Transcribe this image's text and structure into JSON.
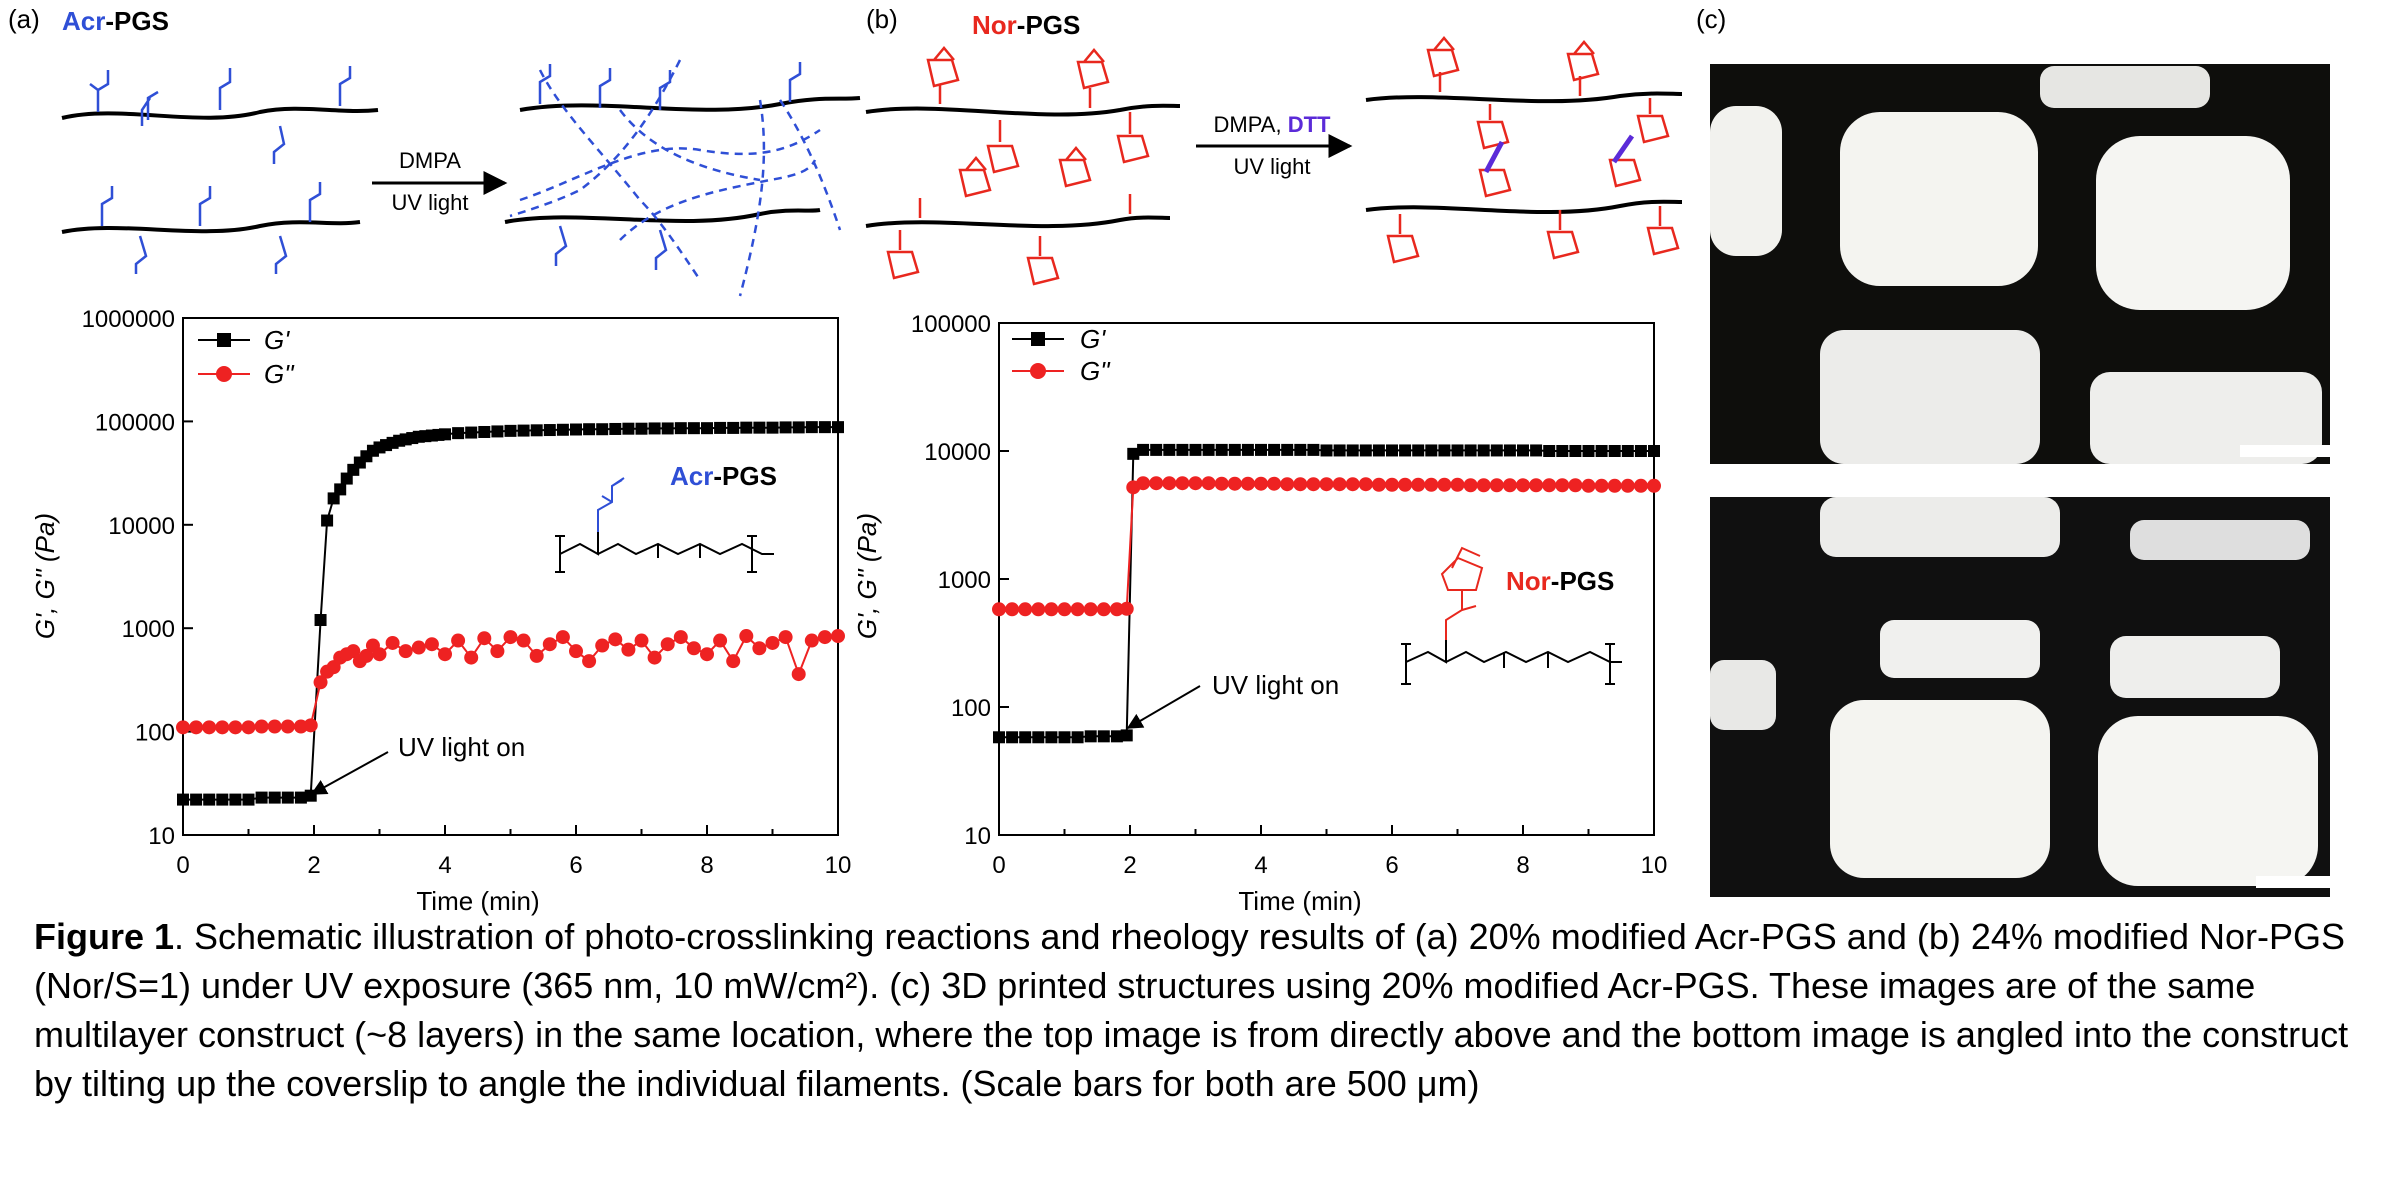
{
  "colors": {
    "acr_blue": "#2f4fd6",
    "nor_red": "#e8281e",
    "dtt_purple": "#5b2bd8",
    "black": "#000000",
    "red_series": "#ee2222"
  },
  "panel_a": {
    "label": "(a)",
    "title_colored": "Acr",
    "title_rest": "-PGS",
    "arrow_top": "DMPA",
    "arrow_bottom": "UV light"
  },
  "panel_b": {
    "label": "(b)",
    "title_colored": "Nor",
    "title_rest": "-PGS",
    "arrow_top_a": "DMPA, ",
    "arrow_top_b": "DTT",
    "arrow_bottom": "UV light"
  },
  "panel_c": {
    "label": "(c)",
    "icon": "microscopy-image"
  },
  "chart_data": [
    {
      "type": "line",
      "xlabel": "Time (min)",
      "ylabel": "G', G'' (Pa)",
      "yscale": "log",
      "xlim": [
        0,
        10
      ],
      "ylim": [
        10,
        1000000
      ],
      "x_ticks": [
        "0",
        "2",
        "4",
        "6",
        "8",
        "10"
      ],
      "y_ticks": [
        "10",
        "100",
        "1000",
        "10000",
        "100000",
        "1000000"
      ],
      "legend": [
        "G'",
        "G\""
      ],
      "legend_position": "top-left",
      "annotation": "UV light on",
      "inset_label_colored": "Acr",
      "inset_label_rest": "-PGS",
      "series": [
        {
          "name": "G'",
          "color": "#000000",
          "marker": "square",
          "x": [
            0,
            0.2,
            0.4,
            0.6,
            0.8,
            1.0,
            1.2,
            1.4,
            1.6,
            1.8,
            1.95,
            2.1,
            2.2,
            2.3,
            2.4,
            2.5,
            2.6,
            2.7,
            2.8,
            2.9,
            3.0,
            3.1,
            3.2,
            3.3,
            3.4,
            3.5,
            3.6,
            3.7,
            3.8,
            3.9,
            4.0,
            4.2,
            4.4,
            4.6,
            4.8,
            5.0,
            5.2,
            5.4,
            5.6,
            5.8,
            6.0,
            6.2,
            6.4,
            6.6,
            6.8,
            7.0,
            7.2,
            7.4,
            7.6,
            7.8,
            8.0,
            8.2,
            8.4,
            8.6,
            8.8,
            9.0,
            9.2,
            9.4,
            9.6,
            9.8,
            10.0
          ],
          "y": [
            22,
            22,
            22,
            22,
            22,
            22,
            23,
            23,
            23,
            23,
            24,
            1200,
            11000,
            18000,
            22000,
            28000,
            34000,
            40000,
            46000,
            52000,
            56000,
            59000,
            62000,
            65000,
            67000,
            69000,
            71000,
            72000,
            73000,
            74000,
            75000,
            77000,
            78000,
            79000,
            80000,
            81000,
            81500,
            82000,
            82500,
            83000,
            83500,
            84000,
            84000,
            84500,
            85000,
            85000,
            85500,
            85500,
            86000,
            86000,
            86000,
            86500,
            86500,
            87000,
            87000,
            87000,
            87500,
            87500,
            88000,
            88000,
            88000
          ]
        },
        {
          "name": "G\"",
          "color": "#ee2222",
          "marker": "circle",
          "x": [
            0,
            0.2,
            0.4,
            0.6,
            0.8,
            1.0,
            1.2,
            1.4,
            1.6,
            1.8,
            1.95,
            2.1,
            2.2,
            2.3,
            2.4,
            2.5,
            2.6,
            2.7,
            2.8,
            2.9,
            3.0,
            3.2,
            3.4,
            3.6,
            3.8,
            4.0,
            4.2,
            4.4,
            4.6,
            4.8,
            5.0,
            5.2,
            5.4,
            5.6,
            5.8,
            6.0,
            6.2,
            6.4,
            6.6,
            6.8,
            7.0,
            7.2,
            7.4,
            7.6,
            7.8,
            8.0,
            8.2,
            8.4,
            8.6,
            8.8,
            9.0,
            9.2,
            9.4,
            9.6,
            9.8,
            10.0
          ],
          "y": [
            110,
            110,
            110,
            110,
            110,
            110,
            112,
            112,
            112,
            112,
            115,
            300,
            380,
            420,
            520,
            560,
            600,
            480,
            540,
            680,
            560,
            720,
            600,
            650,
            700,
            560,
            760,
            520,
            800,
            600,
            820,
            760,
            540,
            700,
            820,
            600,
            480,
            680,
            780,
            620,
            760,
            520,
            700,
            820,
            640,
            560,
            760,
            480,
            840,
            640,
            720,
            820,
            360,
            760,
            820,
            840
          ]
        }
      ]
    },
    {
      "type": "line",
      "xlabel": "Time (min)",
      "ylabel": "G', G'' (Pa)",
      "yscale": "log",
      "xlim": [
        0,
        10
      ],
      "ylim": [
        10,
        100000
      ],
      "x_ticks": [
        "0",
        "2",
        "4",
        "6",
        "8",
        "10"
      ],
      "y_ticks": [
        "10",
        "100",
        "1000",
        "10000",
        "100000"
      ],
      "legend": [
        "G'",
        "G\""
      ],
      "legend_position": "top-left",
      "annotation": "UV light on",
      "inset_label_colored": "Nor",
      "inset_label_rest": "-PGS",
      "series": [
        {
          "name": "G'",
          "color": "#000000",
          "marker": "square",
          "x": [
            0,
            0.2,
            0.4,
            0.6,
            0.8,
            1.0,
            1.2,
            1.4,
            1.6,
            1.8,
            1.95,
            2.05,
            2.2,
            2.4,
            2.6,
            2.8,
            3.0,
            3.2,
            3.4,
            3.6,
            3.8,
            4.0,
            4.2,
            4.4,
            4.6,
            4.8,
            5.0,
            5.2,
            5.4,
            5.6,
            5.8,
            6.0,
            6.2,
            6.4,
            6.6,
            6.8,
            7.0,
            7.2,
            7.4,
            7.6,
            7.8,
            8.0,
            8.2,
            8.4,
            8.6,
            8.8,
            9.0,
            9.2,
            9.4,
            9.6,
            9.8,
            10.0
          ],
          "y": [
            58,
            58,
            58,
            58,
            58,
            58,
            58,
            59,
            59,
            59,
            60,
            9500,
            10200,
            10200,
            10200,
            10200,
            10200,
            10200,
            10200,
            10200,
            10200,
            10200,
            10200,
            10200,
            10200,
            10200,
            10100,
            10100,
            10100,
            10100,
            10100,
            10100,
            10100,
            10100,
            10100,
            10100,
            10100,
            10100,
            10100,
            10100,
            10100,
            10100,
            10100,
            10000,
            10000,
            10000,
            10000,
            10000,
            10000,
            10000,
            10000,
            10000
          ]
        },
        {
          "name": "G\"",
          "color": "#ee2222",
          "marker": "circle",
          "x": [
            0,
            0.2,
            0.4,
            0.6,
            0.8,
            1.0,
            1.2,
            1.4,
            1.6,
            1.8,
            1.95,
            2.05,
            2.2,
            2.4,
            2.6,
            2.8,
            3.0,
            3.2,
            3.4,
            3.6,
            3.8,
            4.0,
            4.2,
            4.4,
            4.6,
            4.8,
            5.0,
            5.2,
            5.4,
            5.6,
            5.8,
            6.0,
            6.2,
            6.4,
            6.6,
            6.8,
            7.0,
            7.2,
            7.4,
            7.6,
            7.8,
            8.0,
            8.2,
            8.4,
            8.6,
            8.8,
            9.0,
            9.2,
            9.4,
            9.6,
            9.8,
            10.0
          ],
          "y": [
            580,
            580,
            580,
            580,
            580,
            580,
            580,
            580,
            580,
            580,
            585,
            5200,
            5600,
            5600,
            5600,
            5600,
            5600,
            5600,
            5550,
            5550,
            5550,
            5550,
            5550,
            5500,
            5500,
            5500,
            5500,
            5500,
            5500,
            5500,
            5450,
            5450,
            5450,
            5450,
            5450,
            5450,
            5450,
            5400,
            5400,
            5400,
            5400,
            5400,
            5400,
            5400,
            5400,
            5400,
            5350,
            5350,
            5350,
            5350,
            5350,
            5350
          ]
        }
      ]
    }
  ],
  "caption": {
    "fig_label": "Figure 1",
    "text": ". Schematic illustration of photo-crosslinking reactions and rheology results of (a) 20% modified Acr-PGS and (b) 24% modified Nor-PGS (Nor/S=1) under UV exposure (365 nm, 10 mW/cm²). (c) 3D printed structures using 20% modified Acr-PGS. These images are of the same multilayer construct (~8 layers) in the same location, where the top image is from directly above and the bottom image is angled into the construct by tilting up the coverslip to angle the individual filaments. (Scale bars for both are 500 μm)"
  }
}
